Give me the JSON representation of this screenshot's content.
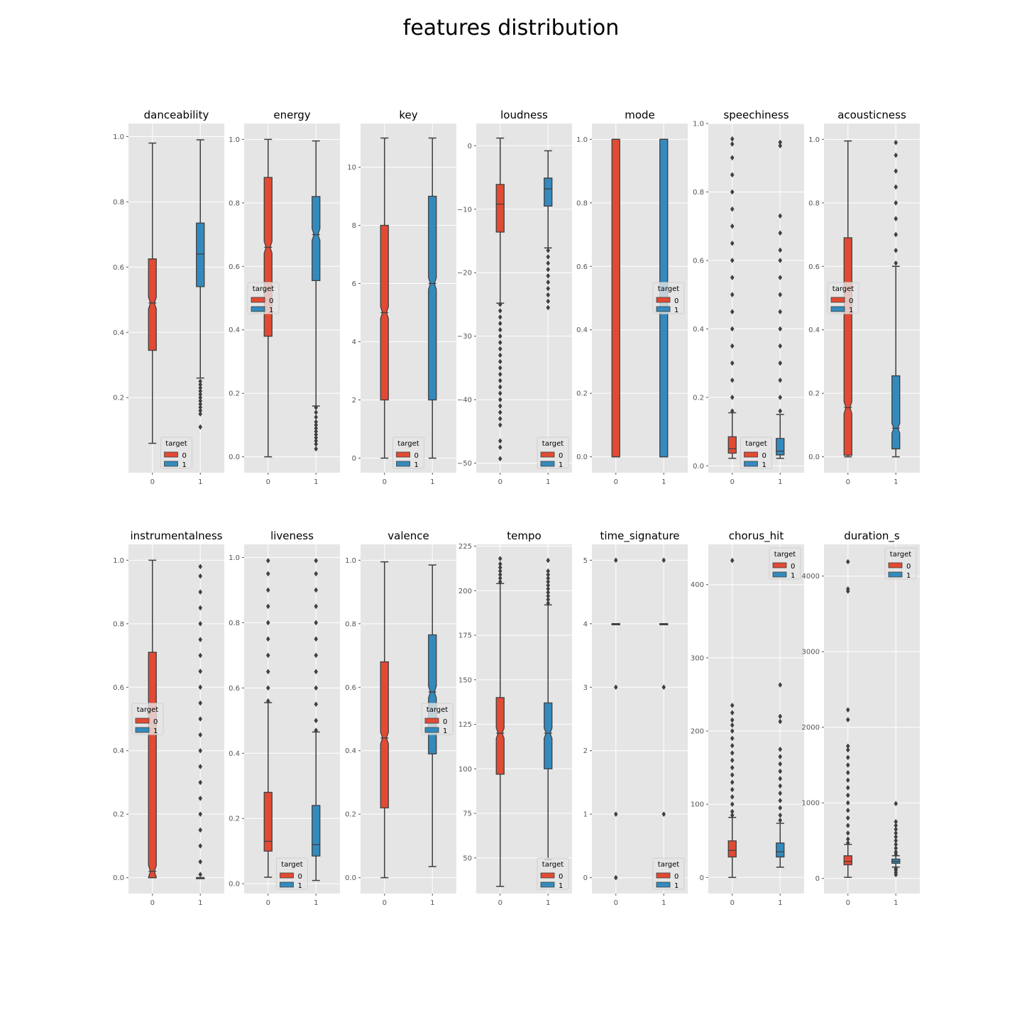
{
  "suptitle": "features distribution",
  "colors": {
    "target_0": "#E24A33",
    "target_1": "#348ABD",
    "panel_bg": "#E5E5E5",
    "grid": "#FFFFFF",
    "line": "#3F3F3F"
  },
  "chart_data": [
    {
      "type": "box",
      "title": "danceability",
      "categories": [
        "0",
        "1"
      ],
      "ylim": [
        -0.03,
        1.04
      ],
      "yticks": [
        0.2,
        0.4,
        0.6,
        0.8,
        1.0
      ],
      "ytick_labels": [
        "0.2",
        "0.4",
        "0.6",
        "0.8",
        "1.0"
      ],
      "legend": {
        "title": "target",
        "labels": [
          "0",
          "1"
        ],
        "position": "lower-center"
      },
      "series": [
        {
          "name": "0",
          "q1": 0.345,
          "median": 0.49,
          "q3": 0.625,
          "whisker_low": 0.06,
          "whisker_high": 0.98,
          "notch": [
            0.485,
            0.495
          ],
          "outliers": []
        },
        {
          "name": "1",
          "q1": 0.54,
          "median": 0.64,
          "q3": 0.735,
          "whisker_low": 0.26,
          "whisker_high": 0.99,
          "outliers": [
            0.25,
            0.24,
            0.23,
            0.22,
            0.21,
            0.2,
            0.19,
            0.18,
            0.17,
            0.16,
            0.15,
            0.11
          ]
        }
      ]
    },
    {
      "type": "box",
      "title": "energy",
      "categories": [
        "0",
        "1"
      ],
      "ylim": [
        -0.05,
        1.05
      ],
      "yticks": [
        0.0,
        0.2,
        0.4,
        0.6,
        0.8,
        1.0
      ],
      "ytick_labels": [
        "0.0",
        "0.2",
        "0.4",
        "0.6",
        "0.8",
        "1.0"
      ],
      "legend": {
        "title": "target",
        "labels": [
          "0",
          "1"
        ],
        "position": "center-left"
      },
      "series": [
        {
          "name": "0",
          "q1": 0.38,
          "median": 0.66,
          "q3": 0.88,
          "whisker_low": 0.0,
          "whisker_high": 1.0,
          "notch": [
            0.655,
            0.665
          ],
          "outliers": []
        },
        {
          "name": "1",
          "q1": 0.555,
          "median": 0.7,
          "q3": 0.82,
          "whisker_low": 0.16,
          "whisker_high": 0.995,
          "notch": [
            0.695,
            0.705
          ],
          "outliers": [
            0.155,
            0.14,
            0.125,
            0.11,
            0.1,
            0.09,
            0.08,
            0.07,
            0.06,
            0.05,
            0.04,
            0.025
          ]
        }
      ]
    },
    {
      "type": "box",
      "title": "key",
      "categories": [
        "0",
        "1"
      ],
      "ylim": [
        -0.5,
        11.5
      ],
      "yticks": [
        0,
        2,
        4,
        6,
        8,
        10
      ],
      "ytick_labels": [
        "0",
        "2",
        "4",
        "6",
        "8",
        "10"
      ],
      "legend": {
        "title": "target",
        "labels": [
          "0",
          "1"
        ],
        "position": "lower-center"
      },
      "series": [
        {
          "name": "0",
          "q1": 2,
          "median": 5,
          "q3": 8,
          "whisker_low": 0,
          "whisker_high": 11,
          "notch": [
            4.95,
            5.05
          ],
          "outliers": []
        },
        {
          "name": "1",
          "q1": 2,
          "median": 6,
          "q3": 9,
          "whisker_low": 0,
          "whisker_high": 11,
          "notch": [
            5.95,
            6.05
          ],
          "outliers": []
        }
      ]
    },
    {
      "type": "box",
      "title": "loudness",
      "categories": [
        "0",
        "1"
      ],
      "ylim": [
        -51.5,
        3.5
      ],
      "yticks": [
        0,
        -10,
        -20,
        -30,
        -40,
        -50
      ],
      "ytick_labels": [
        "0",
        "−10",
        "−20",
        "−30",
        "−40",
        "−50"
      ],
      "legend": {
        "title": "target",
        "labels": [
          "0",
          "1"
        ],
        "position": "lower-right"
      },
      "series": [
        {
          "name": "0",
          "q1": -13.6,
          "median": -9.2,
          "q3": -6.1,
          "whisker_low": -24.8,
          "whisker_high": 1.2,
          "outliers": [
            -25,
            -26,
            -27,
            -28,
            -29,
            -30,
            -31,
            -32,
            -33,
            -34,
            -35,
            -36,
            -37,
            -38,
            -39,
            -40,
            -41,
            -42,
            -43,
            -44,
            -46.5,
            -47.5,
            -49.3
          ]
        },
        {
          "name": "1",
          "q1": -9.5,
          "median": -6.8,
          "q3": -5.1,
          "whisker_low": -16.1,
          "whisker_high": -0.8,
          "outliers": [
            -16.5,
            -17.5,
            -18.5,
            -19.5,
            -20.5,
            -21.5,
            -22.5,
            -23.5,
            -24.5,
            -25.5
          ]
        }
      ]
    },
    {
      "type": "box",
      "title": "mode",
      "categories": [
        "0",
        "1"
      ],
      "ylim": [
        -0.05,
        1.05
      ],
      "yticks": [
        0.0,
        0.2,
        0.4,
        0.6,
        0.8,
        1.0
      ],
      "ytick_labels": [
        "0.0",
        "0.2",
        "0.4",
        "0.6",
        "0.8",
        "1.0"
      ],
      "legend": {
        "title": "target",
        "labels": [
          "0",
          "1"
        ],
        "position": "center-right"
      },
      "series": [
        {
          "name": "0",
          "q1": 0,
          "median": 1,
          "q3": 1,
          "whisker_low": 0,
          "whisker_high": 1,
          "outliers": []
        },
        {
          "name": "1",
          "q1": 0,
          "median": 1,
          "q3": 1,
          "whisker_low": 0,
          "whisker_high": 1,
          "outliers": []
        }
      ]
    },
    {
      "type": "box",
      "title": "speechiness",
      "categories": [
        "0",
        "1"
      ],
      "ylim": [
        -0.02,
        1.0
      ],
      "yticks": [
        0.0,
        0.2,
        0.4,
        0.6,
        0.8,
        1.0
      ],
      "ytick_labels": [
        "0.0",
        "0.2",
        "0.4",
        "0.6",
        "0.8",
        "1.0"
      ],
      "legend": {
        "title": "target",
        "labels": [
          "0",
          "1"
        ],
        "position": "lower-center"
      },
      "series": [
        {
          "name": "0",
          "q1": 0.037,
          "median": 0.05,
          "q3": 0.085,
          "whisker_low": 0.022,
          "whisker_high": 0.155,
          "outliers": [
            0.16,
            0.2,
            0.25,
            0.3,
            0.35,
            0.4,
            0.45,
            0.5,
            0.55,
            0.6,
            0.65,
            0.7,
            0.75,
            0.8,
            0.85,
            0.9,
            0.94,
            0.955
          ]
        },
        {
          "name": "1",
          "q1": 0.032,
          "median": 0.043,
          "q3": 0.08,
          "whisker_low": 0.022,
          "whisker_high": 0.15,
          "outliers": [
            0.16,
            0.2,
            0.25,
            0.3,
            0.35,
            0.4,
            0.45,
            0.5,
            0.55,
            0.6,
            0.63,
            0.68,
            0.73,
            0.935,
            0.945
          ]
        }
      ]
    },
    {
      "type": "box",
      "title": "acousticness",
      "categories": [
        "0",
        "1"
      ],
      "ylim": [
        -0.05,
        1.05
      ],
      "yticks": [
        0.0,
        0.2,
        0.4,
        0.6,
        0.8,
        1.0
      ],
      "ytick_labels": [
        "0.0",
        "0.2",
        "0.4",
        "0.6",
        "0.8",
        "1.0"
      ],
      "legend": {
        "title": "target",
        "labels": [
          "0",
          "1"
        ],
        "position": "center-left"
      },
      "series": [
        {
          "name": "0",
          "q1": 0.005,
          "median": 0.155,
          "q3": 0.69,
          "whisker_low": 0.0,
          "whisker_high": 0.995,
          "notch": [
            0.15,
            0.16
          ],
          "outliers": []
        },
        {
          "name": "1",
          "q1": 0.025,
          "median": 0.09,
          "q3": 0.255,
          "whisker_low": 0.0,
          "whisker_high": 0.6,
          "notch": [
            0.088,
            0.092
          ],
          "outliers": [
            0.61,
            0.65,
            0.7,
            0.75,
            0.8,
            0.85,
            0.9,
            0.95,
            0.99
          ]
        }
      ]
    },
    {
      "type": "box",
      "title": "instrumentalness",
      "categories": [
        "0",
        "1"
      ],
      "ylim": [
        -0.05,
        1.05
      ],
      "yticks": [
        0.0,
        0.2,
        0.4,
        0.6,
        0.8,
        1.0
      ],
      "ytick_labels": [
        "0.0",
        "0.2",
        "0.4",
        "0.6",
        "0.8",
        "1.0"
      ],
      "legend": {
        "title": "target",
        "labels": [
          "0",
          "1"
        ],
        "position": "center-left"
      },
      "series": [
        {
          "name": "0",
          "q1": 0.0,
          "median": 0.02,
          "q3": 0.71,
          "whisker_low": 0.0,
          "whisker_high": 1.0,
          "notch": [
            0.015,
            0.025
          ],
          "outliers": []
        },
        {
          "name": "1",
          "q1": 0.0,
          "median": 0.0,
          "q3": 0.0,
          "whisker_low": 0.0,
          "whisker_high": 0.0,
          "outliers": [
            0.01,
            0.05,
            0.1,
            0.15,
            0.2,
            0.25,
            0.3,
            0.35,
            0.4,
            0.45,
            0.5,
            0.55,
            0.6,
            0.65,
            0.7,
            0.75,
            0.8,
            0.85,
            0.9,
            0.95,
            0.98
          ]
        }
      ]
    },
    {
      "type": "box",
      "title": "liveness",
      "categories": [
        "0",
        "1"
      ],
      "ylim": [
        -0.03,
        1.04
      ],
      "yticks": [
        0.0,
        0.2,
        0.4,
        0.6,
        0.8,
        1.0
      ],
      "ytick_labels": [
        "0.0",
        "0.2",
        "0.4",
        "0.6",
        "0.8",
        "1.0"
      ],
      "legend": {
        "title": "target",
        "labels": [
          "0",
          "1"
        ],
        "position": "lower-center"
      },
      "series": [
        {
          "name": "0",
          "q1": 0.1,
          "median": 0.13,
          "q3": 0.28,
          "whisker_low": 0.02,
          "whisker_high": 0.555,
          "outliers": [
            0.56,
            0.6,
            0.65,
            0.7,
            0.75,
            0.8,
            0.85,
            0.9,
            0.95,
            0.99
          ]
        },
        {
          "name": "1",
          "q1": 0.085,
          "median": 0.12,
          "q3": 0.24,
          "whisker_low": 0.01,
          "whisker_high": 0.465,
          "outliers": [
            0.47,
            0.5,
            0.55,
            0.6,
            0.65,
            0.7,
            0.75,
            0.8,
            0.85,
            0.9,
            0.95,
            0.99
          ]
        }
      ]
    },
    {
      "type": "box",
      "title": "valence",
      "categories": [
        "0",
        "1"
      ],
      "ylim": [
        -0.05,
        1.05
      ],
      "yticks": [
        0.0,
        0.2,
        0.4,
        0.6,
        0.8,
        1.0
      ],
      "ytick_labels": [
        "0.0",
        "0.2",
        "0.4",
        "0.6",
        "0.8",
        "1.0"
      ],
      "legend": {
        "title": "target",
        "labels": [
          "0",
          "1"
        ],
        "position": "center-right"
      },
      "series": [
        {
          "name": "0",
          "q1": 0.22,
          "median": 0.44,
          "q3": 0.68,
          "whisker_low": 0.0,
          "whisker_high": 0.995,
          "notch": [
            0.435,
            0.445
          ],
          "outliers": []
        },
        {
          "name": "1",
          "q1": 0.39,
          "median": 0.585,
          "q3": 0.765,
          "whisker_low": 0.035,
          "whisker_high": 0.985,
          "notch": [
            0.58,
            0.59
          ],
          "outliers": []
        }
      ]
    },
    {
      "type": "box",
      "title": "tempo",
      "categories": [
        "0",
        "1"
      ],
      "ylim": [
        30,
        226
      ],
      "yticks": [
        50,
        75,
        100,
        125,
        150,
        175,
        200,
        225
      ],
      "ytick_labels": [
        "50",
        "75",
        "100",
        "125",
        "150",
        "175",
        "200",
        "225"
      ],
      "legend": {
        "title": "target",
        "labels": [
          "0",
          "1"
        ],
        "position": "lower-right"
      },
      "series": [
        {
          "name": "0",
          "q1": 97,
          "median": 120,
          "q3": 140,
          "whisker_low": 34,
          "whisker_high": 204,
          "notch": [
            119.5,
            120.5
          ],
          "outliers": [
            205,
            207,
            209,
            211,
            213,
            215,
            218
          ]
        },
        {
          "name": "1",
          "q1": 100,
          "median": 120,
          "q3": 137,
          "whisker_low": 49,
          "whisker_high": 192,
          "notch": [
            119.5,
            120.5
          ],
          "outliers": [
            193,
            195,
            197,
            199,
            201,
            203,
            205,
            207,
            209,
            211,
            217
          ]
        }
      ]
    },
    {
      "type": "box",
      "title": "time_signature",
      "categories": [
        "0",
        "1"
      ],
      "ylim": [
        -0.25,
        5.25
      ],
      "yticks": [
        0,
        1,
        2,
        3,
        4,
        5
      ],
      "ytick_labels": [
        "0",
        "1",
        "2",
        "3",
        "4",
        "5"
      ],
      "legend": {
        "title": "target",
        "labels": [
          "0",
          "1"
        ],
        "position": "lower-right"
      },
      "series": [
        {
          "name": "0",
          "q1": 4,
          "median": 4,
          "q3": 4,
          "whisker_low": 4,
          "whisker_high": 4,
          "outliers": [
            0,
            1,
            3,
            5
          ]
        },
        {
          "name": "1",
          "q1": 4,
          "median": 4,
          "q3": 4,
          "whisker_low": 4,
          "whisker_high": 4,
          "outliers": [
            1,
            3,
            5
          ]
        }
      ]
    },
    {
      "type": "box",
      "title": "chorus_hit",
      "categories": [
        "0",
        "1"
      ],
      "ylim": [
        -22,
        455
      ],
      "yticks": [
        0,
        100,
        200,
        300,
        400
      ],
      "ytick_labels": [
        "0",
        "100",
        "200",
        "300",
        "400"
      ],
      "legend": {
        "title": "target",
        "labels": [
          "0",
          "1"
        ],
        "position": "upper-right"
      },
      "series": [
        {
          "name": "0",
          "q1": 28,
          "median": 37,
          "q3": 50,
          "whisker_low": 0,
          "whisker_high": 82,
          "outliers": [
            85,
            90,
            100,
            110,
            120,
            130,
            140,
            150,
            160,
            170,
            180,
            190,
            200,
            208,
            215,
            225,
            235,
            433
          ]
        },
        {
          "name": "1",
          "q1": 28,
          "median": 35,
          "q3": 47,
          "whisker_low": 14,
          "whisker_high": 74,
          "outliers": [
            78,
            85,
            95,
            105,
            115,
            125,
            135,
            145,
            155,
            165,
            175,
            213,
            220,
            263
          ]
        }
      ]
    },
    {
      "type": "box",
      "title": "duration_s",
      "categories": [
        "0",
        "1"
      ],
      "ylim": [
        -200,
        4420
      ],
      "yticks": [
        0,
        1000,
        2000,
        3000,
        4000
      ],
      "ytick_labels": [
        "0",
        "1000",
        "2000",
        "3000",
        "4000"
      ],
      "legend": {
        "title": "target",
        "labels": [
          "0",
          "1"
        ],
        "position": "upper-right"
      },
      "series": [
        {
          "name": "0",
          "q1": 180,
          "median": 225,
          "q3": 300,
          "whisker_low": 15,
          "whisker_high": 450,
          "outliers": [
            470,
            520,
            600,
            700,
            800,
            900,
            1000,
            1100,
            1200,
            1300,
            1400,
            1500,
            1600,
            1700,
            1750,
            2100,
            2230,
            3800,
            3830,
            4190
          ]
        },
        {
          "name": "1",
          "q1": 200,
          "median": 225,
          "q3": 255,
          "whisker_low": 150,
          "whisker_high": 300,
          "outliers": [
            50,
            80,
            110,
            130,
            320,
            350,
            400,
            450,
            500,
            550,
            600,
            650,
            700,
            750,
            990
          ]
        }
      ]
    }
  ]
}
